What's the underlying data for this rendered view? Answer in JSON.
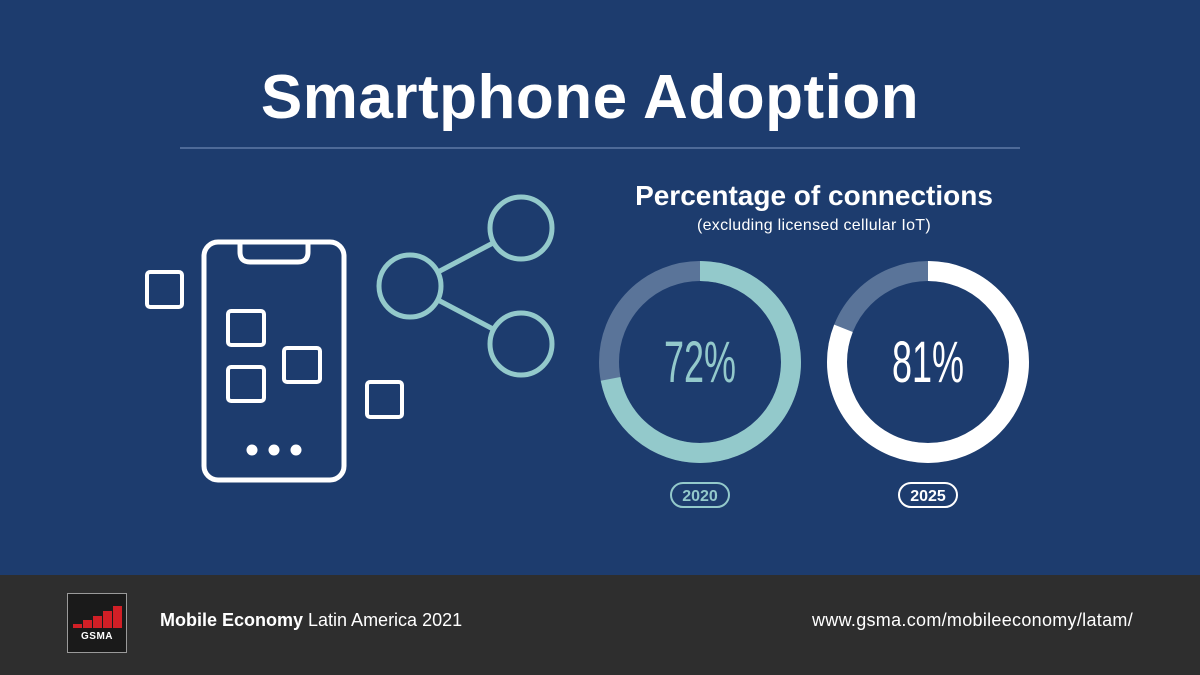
{
  "header": {
    "title": "Smartphone Adoption"
  },
  "chart_data": {
    "type": "pie",
    "title": "Percentage of connections",
    "subtitle": "(excluding licensed cellular IoT)",
    "unit": "%",
    "series": [
      {
        "year": "2020",
        "value": 72,
        "label": "72%",
        "color": "#93c9cb"
      },
      {
        "year": "2025",
        "value": 81,
        "label": "81%",
        "color": "#ffffff"
      }
    ],
    "remainder_color": "#5a7499"
  },
  "colors": {
    "background": "#1d3c6e",
    "footer": "#2e2e2e",
    "accent_teal": "#93c9cb",
    "brand_red": "#d11f26"
  },
  "icons": [
    "smartphone-icon",
    "share-icon",
    "square-icon"
  ],
  "footer": {
    "logo_text": "GSMA",
    "report_bold": "Mobile Economy",
    "report_rest": " Latin America 2021",
    "url": "www.gsma.com/mobileeconomy/latam/"
  }
}
